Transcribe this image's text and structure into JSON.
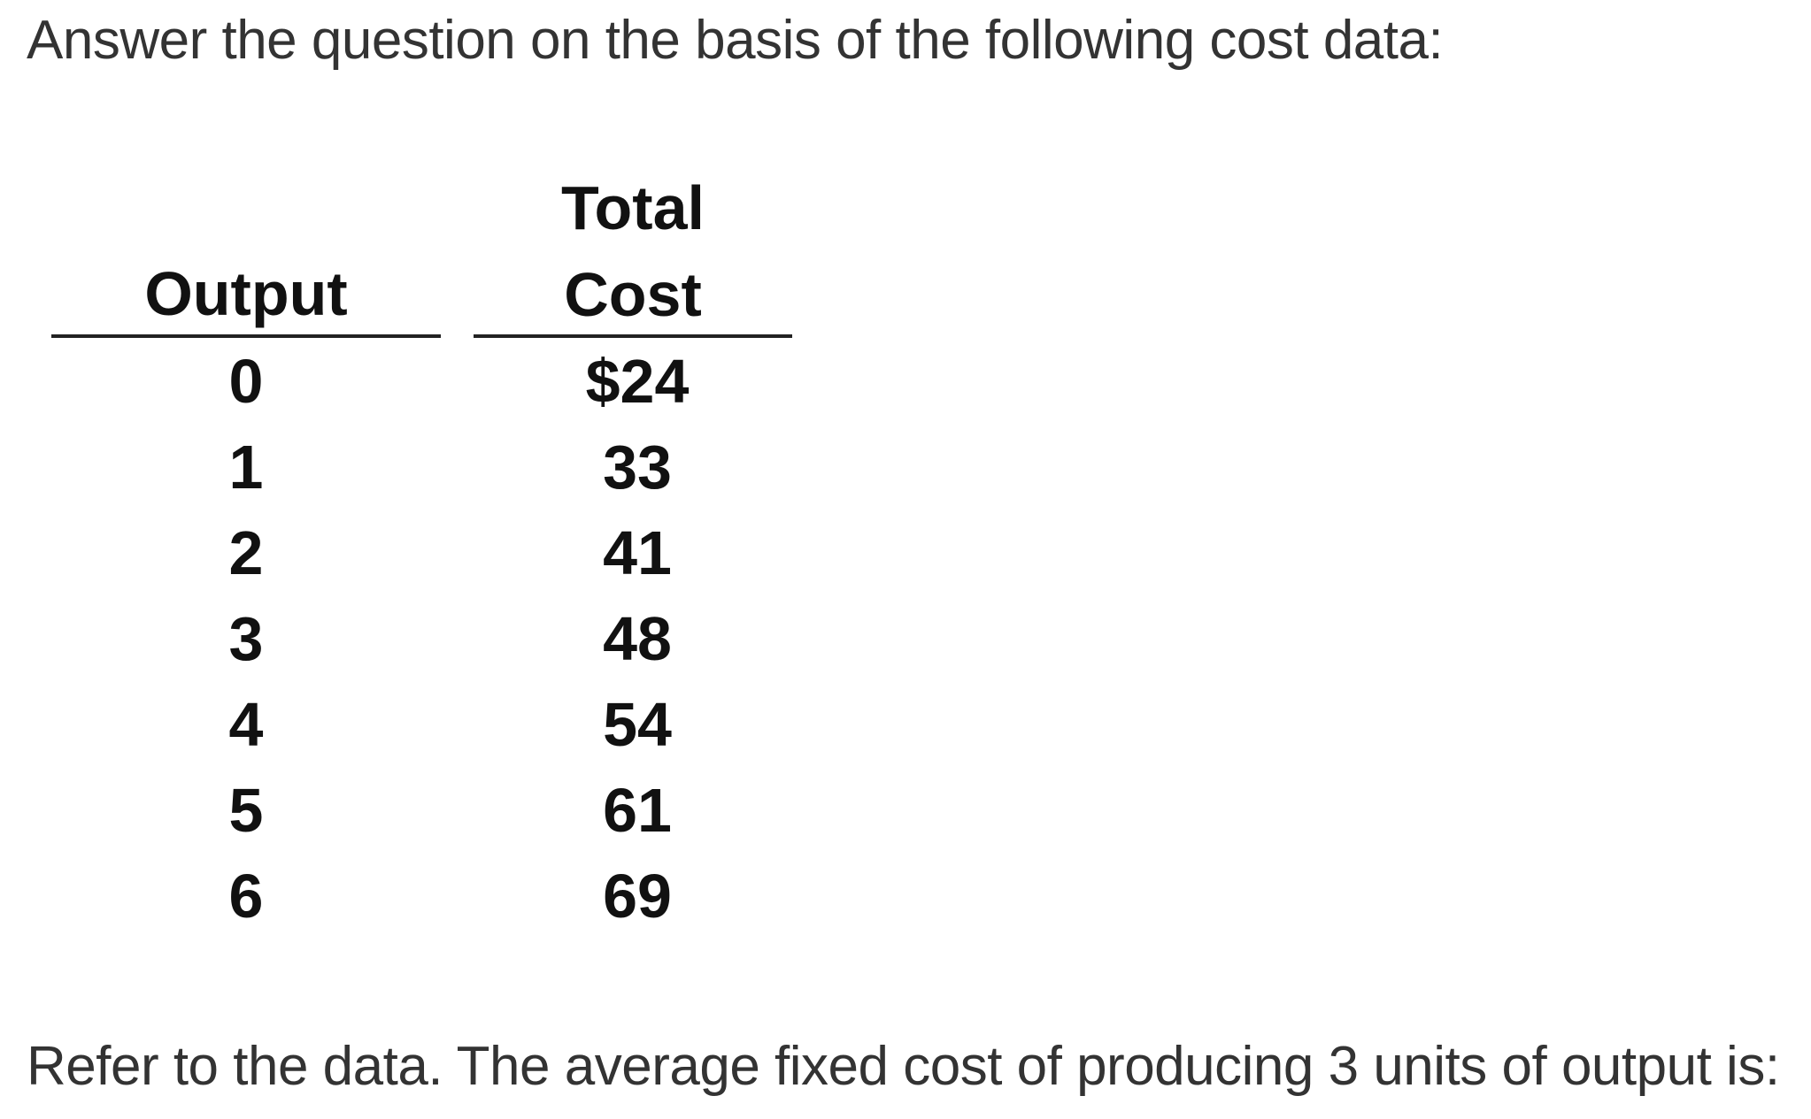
{
  "intro_text": "Answer the question on the basis of the following cost data:",
  "table": {
    "headers": {
      "output": "Output",
      "total_cost_line1": "Total",
      "total_cost_line2": "Cost"
    },
    "rows": [
      {
        "output": "0",
        "total_cost": "$24"
      },
      {
        "output": "1",
        "total_cost": "33"
      },
      {
        "output": "2",
        "total_cost": "41"
      },
      {
        "output": "3",
        "total_cost": "48"
      },
      {
        "output": "4",
        "total_cost": "54"
      },
      {
        "output": "5",
        "total_cost": "61"
      },
      {
        "output": "6",
        "total_cost": "69"
      }
    ]
  },
  "question_text": "Refer to the data. The average fixed cost of producing 3 units of output is:"
}
